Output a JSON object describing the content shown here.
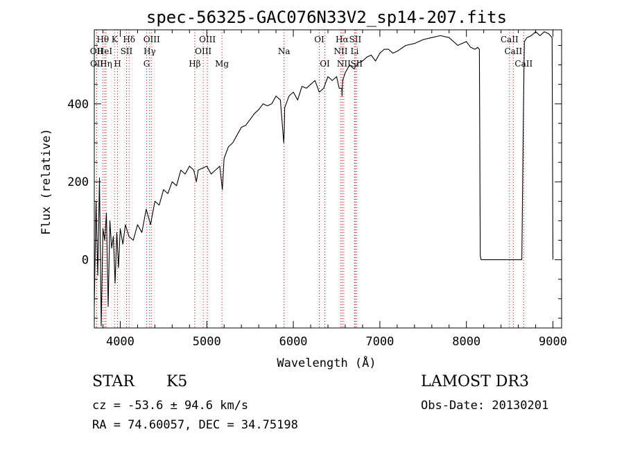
{
  "chart_data": {
    "type": "line",
    "title": "spec-56325-GAC076N33V2_sp14-207.fits",
    "xlabel": "Wavelength (Å)",
    "ylabel": "Flux (relative)",
    "xlim": [
      3700,
      9100
    ],
    "ylim": [
      -175,
      590
    ],
    "x_ticks": [
      4000,
      5000,
      6000,
      7000,
      8000,
      9000
    ],
    "y_ticks": [
      0,
      200,
      400
    ],
    "line_color": "#000000",
    "marker_color": "#cc0000",
    "series": [
      {
        "name": "flux",
        "x": [
          3700,
          3720,
          3740,
          3760,
          3780,
          3800,
          3820,
          3840,
          3860,
          3880,
          3900,
          3920,
          3940,
          3960,
          3980,
          4000,
          4030,
          4060,
          4100,
          4150,
          4200,
          4250,
          4300,
          4350,
          4400,
          4450,
          4500,
          4550,
          4600,
          4650,
          4700,
          4750,
          4800,
          4850,
          4880,
          4900,
          4950,
          5000,
          5050,
          5100,
          5150,
          5180,
          5200,
          5250,
          5300,
          5350,
          5400,
          5450,
          5500,
          5550,
          5600,
          5650,
          5700,
          5750,
          5800,
          5850,
          5890,
          5895,
          5900,
          5950,
          6000,
          6050,
          6100,
          6150,
          6200,
          6250,
          6300,
          6350,
          6400,
          6450,
          6500,
          6530,
          6560,
          6563,
          6570,
          6600,
          6650,
          6700,
          6750,
          6800,
          6850,
          6900,
          6950,
          7000,
          7050,
          7100,
          7150,
          7200,
          7300,
          7400,
          7500,
          7600,
          7700,
          7800,
          7900,
          8000,
          8050,
          8100,
          8130,
          8150,
          8160,
          8170,
          8200,
          8300,
          8400,
          8500,
          8600,
          8640,
          8660,
          8670,
          8700,
          8750,
          8800,
          8850,
          8900,
          8950,
          8990,
          9000
        ],
        "y": [
          -120,
          150,
          -40,
          210,
          -170,
          80,
          50,
          120,
          -120,
          100,
          30,
          60,
          -60,
          70,
          -20,
          80,
          40,
          90,
          60,
          50,
          90,
          70,
          130,
          90,
          150,
          140,
          180,
          170,
          200,
          190,
          230,
          220,
          240,
          230,
          200,
          230,
          235,
          240,
          220,
          230,
          240,
          180,
          260,
          290,
          300,
          320,
          340,
          345,
          360,
          375,
          385,
          400,
          395,
          400,
          420,
          410,
          300,
          330,
          390,
          420,
          430,
          410,
          445,
          440,
          450,
          460,
          430,
          440,
          470,
          460,
          470,
          440,
          440,
          420,
          460,
          480,
          500,
          490,
          505,
          510,
          520,
          525,
          510,
          530,
          540,
          540,
          530,
          535,
          550,
          555,
          565,
          570,
          575,
          570,
          550,
          560,
          545,
          540,
          545,
          540,
          10,
          0,
          0,
          0,
          0,
          0,
          0,
          0,
          400,
          560,
          570,
          575,
          585,
          575,
          585,
          580,
          570,
          0
        ]
      }
    ],
    "line_markers": [
      {
        "label": "Hθ",
        "wavelength": 3798,
        "row": 1
      },
      {
        "label": "OII",
        "wavelength": 3727,
        "row": 2
      },
      {
        "label": "OII",
        "wavelength": 3729,
        "row": 3
      },
      {
        "label": "HeI",
        "wavelength": 3820,
        "row": 2
      },
      {
        "label": "Hη",
        "wavelength": 3835,
        "row": 3
      },
      {
        "label": "K",
        "wavelength": 3934,
        "row": 1
      },
      {
        "label": "SII",
        "wavelength": 4072,
        "row": 2
      },
      {
        "label": "H",
        "wavelength": 3969,
        "row": 3
      },
      {
        "label": "Hδ",
        "wavelength": 4102,
        "row": 1
      },
      {
        "label": "OIII",
        "wavelength": 4363,
        "row": 1
      },
      {
        "label": "Hγ",
        "wavelength": 4340,
        "row": 2
      },
      {
        "label": "G",
        "wavelength": 4305,
        "row": 3
      },
      {
        "label": "Hβ",
        "wavelength": 4861,
        "row": 3
      },
      {
        "label": "OIII",
        "wavelength": 5007,
        "row": 1
      },
      {
        "label": "OIII",
        "wavelength": 4959,
        "row": 2
      },
      {
        "label": "Mg",
        "wavelength": 5175,
        "row": 3
      },
      {
        "label": "Na",
        "wavelength": 5893,
        "row": 2
      },
      {
        "label": "OI",
        "wavelength": 6300,
        "row": 1
      },
      {
        "label": "OI",
        "wavelength": 6364,
        "row": 3
      },
      {
        "label": "Hα",
        "wavelength": 6563,
        "row": 1
      },
      {
        "label": "SII",
        "wavelength": 6716,
        "row": 1
      },
      {
        "label": "NII",
        "wavelength": 6548,
        "row": 2
      },
      {
        "label": "Li",
        "wavelength": 6708,
        "row": 2
      },
      {
        "label": "NII",
        "wavelength": 6583,
        "row": 3
      },
      {
        "label": "SII",
        "wavelength": 6731,
        "row": 3
      },
      {
        "label": "CaII",
        "wavelength": 8498,
        "row": 1
      },
      {
        "label": "CaII",
        "wavelength": 8542,
        "row": 2
      },
      {
        "label": "CaII",
        "wavelength": 8662,
        "row": 3
      }
    ]
  },
  "info": {
    "object_class": "STAR",
    "subclass": "K5",
    "survey": "LAMOST DR3",
    "cz": "cz = -53.6 ± 94.6 km/s",
    "obs_date": "Obs-Date: 20130201",
    "radec": "RA =  74.60057, DEC =  34.75198"
  }
}
